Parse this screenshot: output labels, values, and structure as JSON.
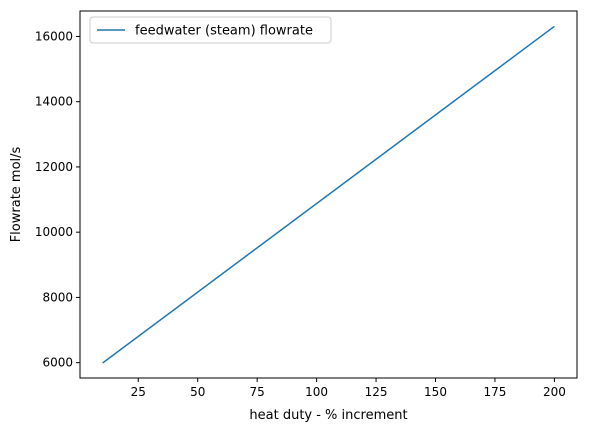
{
  "chart_data": {
    "type": "line",
    "title": "",
    "xlabel": "heat duty - % increment",
    "ylabel": "Flowrate mol/s",
    "xlim": [
      0.5,
      209.5
    ],
    "ylim": [
      5530,
      16780
    ],
    "xticks": [
      25,
      50,
      75,
      100,
      125,
      150,
      175,
      200
    ],
    "yticks": [
      6000,
      8000,
      10000,
      12000,
      14000,
      16000
    ],
    "grid": false,
    "legend": "top-left",
    "series": [
      {
        "name": "feedwater (steam) flowrate",
        "color": "#1f77b4",
        "x": [
          10,
          200
        ],
        "y": [
          5990,
          16310
        ]
      }
    ]
  }
}
